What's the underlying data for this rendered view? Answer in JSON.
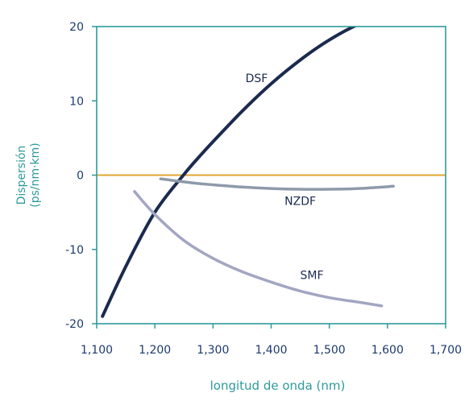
{
  "chart_data": {
    "type": "line",
    "title": "",
    "xlabel": "longitud de onda (nm)",
    "ylabel_line1": "Dispersión",
    "ylabel_line2": "(ps/nm·km)",
    "xlim": [
      1100,
      1700
    ],
    "ylim": [
      -20,
      20
    ],
    "x_ticks": [
      1100,
      1200,
      1300,
      1400,
      1500,
      1600,
      1700
    ],
    "x_tick_labels": [
      "1,100",
      "1,200",
      "1,300",
      "1,400",
      "1,500",
      "1,600",
      "1,700"
    ],
    "y_ticks": [
      20,
      10,
      0,
      -10,
      -20
    ],
    "y_tick_labels": [
      "20",
      "10",
      "0",
      "-10",
      "-20"
    ],
    "grid": false,
    "legend": "none (series labeled inline)",
    "colors": {
      "axes": "#2e9a9a",
      "tick_labels": "#1d3a6e",
      "axis_titles": "#2e9a9a",
      "zero_line": "#e0a830",
      "DSF": "#1b2a4e",
      "NZDF": "#8e9aaa",
      "SMF": "#a3a6c2"
    },
    "series": [
      {
        "name": "DSF",
        "x": [
          1110,
          1150,
          1200,
          1250,
          1280,
          1300,
          1350,
          1400,
          1450,
          1500,
          1550,
          1580
        ],
        "y": [
          -19,
          -12.3,
          -5,
          0.1,
          2.8,
          4.5,
          8.6,
          12.3,
          15.5,
          18.2,
          20.3,
          21
        ]
      },
      {
        "name": "NZDF",
        "x": [
          1210,
          1260,
          1300,
          1350,
          1400,
          1450,
          1500,
          1550,
          1610
        ],
        "y": [
          -0.5,
          -1,
          -1.3,
          -1.6,
          -1.8,
          -1.9,
          -1.9,
          -1.8,
          -1.5
        ]
      },
      {
        "name": "SMF",
        "x": [
          1165,
          1200,
          1250,
          1300,
          1350,
          1400,
          1450,
          1500,
          1550,
          1590
        ],
        "y": [
          -2.2,
          -5.3,
          -8.8,
          -11.2,
          -13,
          -14.4,
          -15.6,
          -16.5,
          -17.1,
          -17.6
        ]
      }
    ],
    "labels": [
      {
        "text": "DSF",
        "x": 1375,
        "y": 12.5
      },
      {
        "text": "NZDF",
        "x": 1450,
        "y": -4
      },
      {
        "text": "SMF",
        "x": 1470,
        "y": -14
      }
    ]
  }
}
